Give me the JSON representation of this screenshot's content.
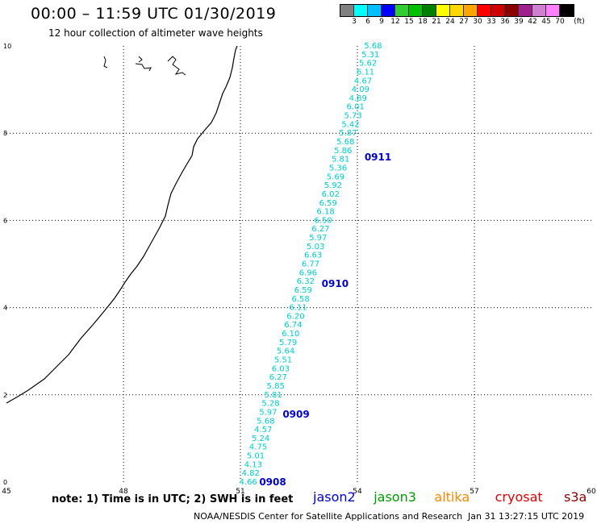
{
  "title": "00:00 – 11:59 UTC 01/30/2019",
  "subtitle": "12 hour collection of altimeter wave heights",
  "colorbar": {
    "unit_label": "(ft)",
    "colors": [
      "#808080",
      "#00ffff",
      "#00bfff",
      "#0000ff",
      "#32cd32",
      "#00c000",
      "#008000",
      "#ffff00",
      "#ffd700",
      "#ffa500",
      "#ff0000",
      "#d00000",
      "#8b0000",
      "#a0208e",
      "#d080d0",
      "#ff80ff",
      "#000000"
    ],
    "labels": [
      "3",
      "6",
      "9",
      "12",
      "15",
      "18",
      "21",
      "24",
      "27",
      "30",
      "33",
      "36",
      "39",
      "42",
      "45",
      "70"
    ]
  },
  "chart_data": {
    "type": "scatter",
    "x_ticks": [
      "45",
      "48",
      "51",
      "54",
      "57",
      "60"
    ],
    "y_ticks": [
      "0",
      "2",
      "4",
      "6",
      "8",
      "10"
    ],
    "xlim": [
      45,
      60
    ],
    "ylim": [
      0,
      10
    ],
    "grid": true,
    "swh_track": {
      "start": [
        51.2,
        0.0
      ],
      "end": [
        54.4,
        10.0
      ],
      "values": [
        "4.66",
        "4.82",
        "4.13",
        "5.01",
        "4.75",
        "5.24",
        "4.57",
        "5.68",
        "5.97",
        "5.28",
        "5.81",
        "5.85",
        "6.27",
        "6.03",
        "5.51",
        "5.64",
        "5.79",
        "6.10",
        "6.74",
        "6.20",
        "6.11",
        "6.58",
        "6.59",
        "6.32",
        "6.96",
        "6.77",
        "6.63",
        "5.03",
        "5.97",
        "6.27",
        "6.50",
        "6.18",
        "6.59",
        "6.02",
        "5.92",
        "5.69",
        "5.36",
        "5.81",
        "5.86",
        "5.68",
        "5.87",
        "5.42",
        "5.73",
        "6.01",
        "4.89",
        "4.09",
        "4.67",
        "6.11",
        "5.62",
        "5.31",
        "5.68"
      ]
    },
    "time_labels": [
      {
        "text": "0908",
        "x": 51.4,
        "y": 0.0
      },
      {
        "text": "0909",
        "x": 52.0,
        "y": 1.55
      },
      {
        "text": "0910",
        "x": 53.0,
        "y": 4.55
      },
      {
        "text": "0911",
        "x": 54.1,
        "y": 7.45
      }
    ]
  },
  "note": "note: 1) Time is in UTC; 2) SWH is in feet",
  "satellites": [
    {
      "name": "jason2",
      "color": "#0000cc"
    },
    {
      "name": "jason3",
      "color": "#009900"
    },
    {
      "name": "altika",
      "color": "#ff8800"
    },
    {
      "name": "cryosat",
      "color": "#dd0000"
    },
    {
      "name": "s3a",
      "color": "#8b0000"
    }
  ],
  "credit": "NOAA/NESDIS Center for Satellite Applications and Research",
  "timestamp": "Jan 31 13:27:15 UTC 2019",
  "colors": {
    "track": "#00cccc",
    "time_label": "#0000cc",
    "coast": "#000000",
    "grid": "#000000"
  }
}
